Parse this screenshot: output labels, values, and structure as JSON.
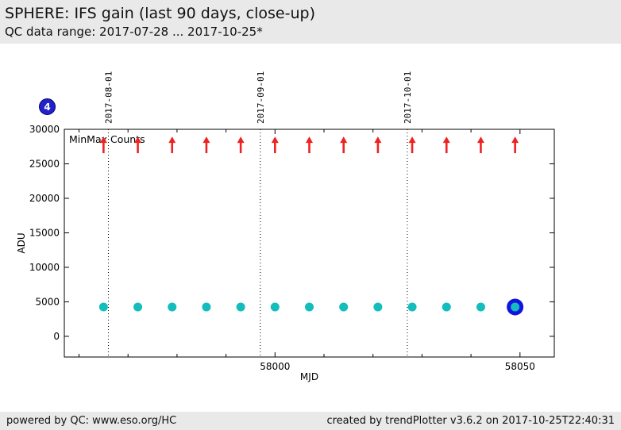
{
  "header": {
    "title": "SPHERE: IFS gain (last 90 days, close-up)",
    "subtitle": "QC data range: 2017-07-28 ... 2017-10-25*"
  },
  "badge": {
    "value": "4",
    "color": "#2222cc"
  },
  "footer": {
    "left": "powered by QC: www.eso.org/HC",
    "right": "created by trendPlotter v3.6.2 on 2017-10-25T22:40:31"
  },
  "chart_data": {
    "type": "scatter",
    "xlabel": "MJD",
    "ylabel": "ADU",
    "inner_label": "MinMax Counts",
    "xlim": [
      57957,
      58057
    ],
    "ylim": [
      -3000,
      30000
    ],
    "grid": false,
    "x_ticks_labeled": [
      58000,
      58050
    ],
    "x_ticks_minor": [
      57960,
      57970,
      57980,
      57990,
      58010,
      58020,
      58030,
      58040
    ],
    "y_ticks": [
      0,
      5000,
      10000,
      15000,
      20000,
      25000,
      30000
    ],
    "date_markers": [
      {
        "mjd": 57966,
        "label": "2017-08-01"
      },
      {
        "mjd": 57997,
        "label": "2017-09-01"
      },
      {
        "mjd": 58027,
        "label": "2017-10-01"
      }
    ],
    "series": [
      {
        "name": "IFS gain",
        "marker": "dot",
        "color": "#13bdbd",
        "x": [
          57965,
          57972,
          57979,
          57986,
          57993,
          58000,
          58007,
          58014,
          58021,
          58028,
          58035,
          58042,
          58049
        ],
        "y": [
          4250,
          4250,
          4250,
          4250,
          4250,
          4250,
          4250,
          4250,
          4250,
          4250,
          4250,
          4250,
          4250
        ]
      },
      {
        "name": "MinMax Counts",
        "marker": "arrow-up",
        "color": "#ee2222",
        "x": [
          57965,
          57972,
          57979,
          57986,
          57993,
          58000,
          58007,
          58014,
          58021,
          58028,
          58035,
          58042,
          58049
        ],
        "y": [
          27750,
          27750,
          27750,
          27750,
          27750,
          27750,
          27750,
          27750,
          27750,
          27750,
          27750,
          27750,
          27750
        ]
      }
    ],
    "highlight": {
      "series": 0,
      "index": 12,
      "ring_color": "#1414e0"
    }
  }
}
